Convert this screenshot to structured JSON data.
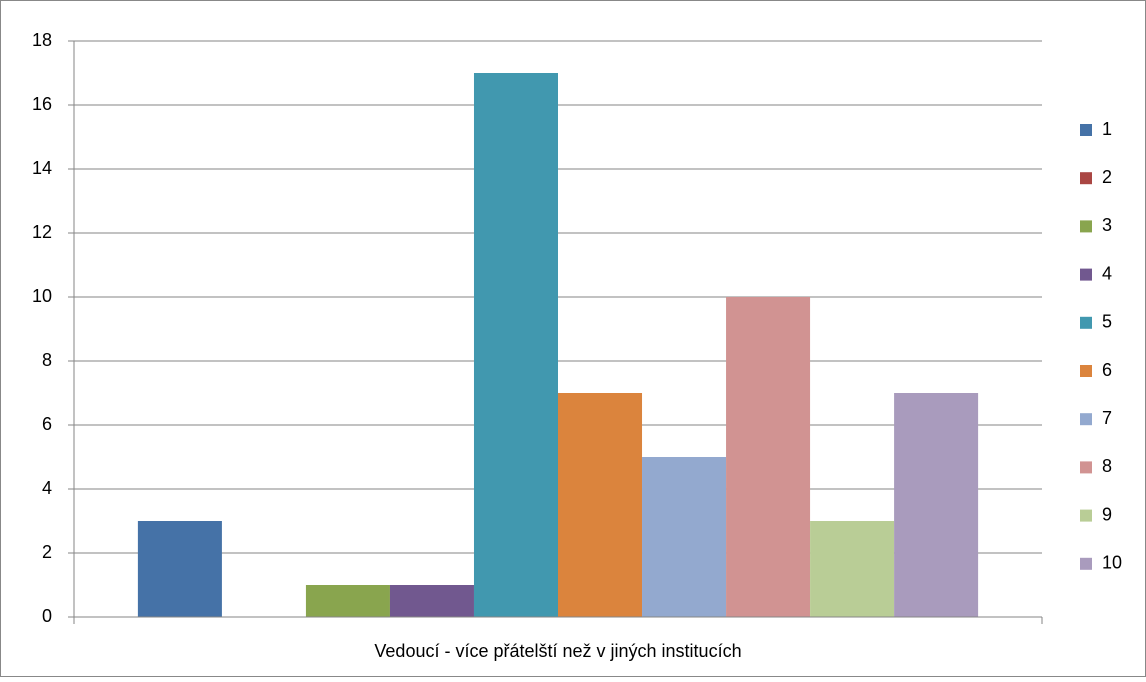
{
  "chart_data": {
    "type": "bar",
    "categories": [
      "Vedoucí - více přátelští než v jiných institucích"
    ],
    "series": [
      {
        "name": "1",
        "color": "#4572a7",
        "values": [
          3
        ]
      },
      {
        "name": "2",
        "color": "#aa4643",
        "values": [
          0
        ]
      },
      {
        "name": "3",
        "color": "#89a54e",
        "values": [
          1
        ]
      },
      {
        "name": "4",
        "color": "#71588f",
        "values": [
          1
        ]
      },
      {
        "name": "5",
        "color": "#4198af",
        "values": [
          17
        ]
      },
      {
        "name": "6",
        "color": "#db843d",
        "values": [
          7
        ]
      },
      {
        "name": "7",
        "color": "#93a9cf",
        "values": [
          5
        ]
      },
      {
        "name": "8",
        "color": "#d19392",
        "values": [
          10
        ]
      },
      {
        "name": "9",
        "color": "#b9cd96",
        "values": [
          3
        ]
      },
      {
        "name": "10",
        "color": "#a99bbd",
        "values": [
          7
        ]
      }
    ],
    "ylim": [
      0,
      18
    ],
    "yticks": [
      0,
      2,
      4,
      6,
      8,
      10,
      12,
      14,
      16,
      18
    ],
    "grid": true,
    "legend": "right"
  }
}
